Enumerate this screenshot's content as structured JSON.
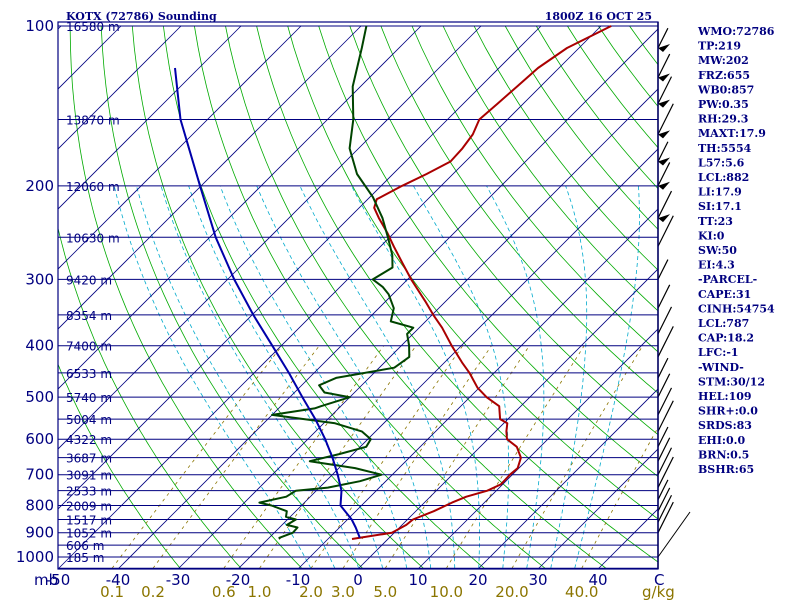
{
  "chart_data": {
    "type": "line",
    "title": "KOTX (72786) Sounding",
    "timestamp": "1800Z 16 OCT 25",
    "pressure_axis": {
      "unit_label": "mb",
      "ticks": [
        100,
        200,
        300,
        400,
        500,
        600,
        700,
        800,
        900,
        1000
      ],
      "range": [
        100,
        1050
      ],
      "scale": "log"
    },
    "temperature_axis": {
      "unit_label": "C",
      "ticks": [
        -50,
        -40,
        -30,
        -20,
        -10,
        0,
        10,
        20,
        30,
        40
      ],
      "range": [
        -50,
        50
      ],
      "skew": "45deg"
    },
    "mixing_ratio_axis": {
      "unit_label": "g/kg",
      "ticks": [
        "0.1",
        "0.2",
        "0.6",
        "1.0",
        "2.0",
        "3.0",
        "5.0",
        "10.0",
        "20.0",
        "40.0"
      ]
    },
    "height_labels": [
      {
        "p": 100,
        "text": "16580 m"
      },
      {
        "p": 150,
        "text": "13870 m"
      },
      {
        "p": 200,
        "text": "12060 m"
      },
      {
        "p": 250,
        "text": "10630 m"
      },
      {
        "p": 300,
        "text": "9420 m"
      },
      {
        "p": 350,
        "text": "8354 m"
      },
      {
        "p": 400,
        "text": "7400 m"
      },
      {
        "p": 450,
        "text": "6533 m"
      },
      {
        "p": 500,
        "text": "5740 m"
      },
      {
        "p": 550,
        "text": "5004 m"
      },
      {
        "p": 600,
        "text": "4322 m"
      },
      {
        "p": 650,
        "text": "3687 m"
      },
      {
        "p": 700,
        "text": "3091 m"
      },
      {
        "p": 750,
        "text": "2533 m"
      },
      {
        "p": 800,
        "text": "2009 m"
      },
      {
        "p": 850,
        "text": "1517 m"
      },
      {
        "p": 900,
        "text": "1052 m"
      },
      {
        "p": 950,
        "text": "606 m"
      },
      {
        "p": 1000,
        "text": "185 m"
      }
    ],
    "series": [
      {
        "name": "Temperature",
        "color": "#aa0000",
        "points": [
          [
            925,
            -6.0
          ],
          [
            920,
            -4.9
          ],
          [
            900,
            -0.4
          ],
          [
            870,
            0.7
          ],
          [
            850,
            0.9
          ],
          [
            820,
            3.0
          ],
          [
            790,
            4.6
          ],
          [
            770,
            6.0
          ],
          [
            750,
            8.5
          ],
          [
            730,
            9.7
          ],
          [
            700,
            9.6
          ],
          [
            680,
            9.8
          ],
          [
            650,
            8.6
          ],
          [
            620,
            6.1
          ],
          [
            600,
            3.2
          ],
          [
            580,
            1.8
          ],
          [
            560,
            0.6
          ],
          [
            550,
            -1.3
          ],
          [
            520,
            -3.6
          ],
          [
            500,
            -7.2
          ],
          [
            480,
            -10.3
          ],
          [
            450,
            -14.1
          ],
          [
            430,
            -17.1
          ],
          [
            400,
            -21.6
          ],
          [
            370,
            -26.2
          ],
          [
            350,
            -29.8
          ],
          [
            330,
            -33.4
          ],
          [
            300,
            -39.4
          ],
          [
            280,
            -43.5
          ],
          [
            260,
            -47.8
          ],
          [
            245,
            -51.2
          ],
          [
            230,
            -55.0
          ],
          [
            220,
            -57.5
          ],
          [
            212,
            -58.5
          ],
          [
            200,
            -56.5
          ],
          [
            190,
            -54.4
          ],
          [
            180,
            -52.5
          ],
          [
            170,
            -52.7
          ],
          [
            160,
            -53.3
          ],
          [
            150,
            -54.7
          ],
          [
            140,
            -54.3
          ],
          [
            130,
            -53.9
          ],
          [
            120,
            -53.5
          ],
          [
            110,
            -52.0
          ],
          [
            100,
            -48.3
          ]
        ]
      },
      {
        "name": "Dewpoint",
        "color": "#004400",
        "points": [
          [
            925,
            -18.0
          ],
          [
            920,
            -18.3
          ],
          [
            900,
            -16.9
          ],
          [
            880,
            -17.0
          ],
          [
            870,
            -19.2
          ],
          [
            850,
            -18.6
          ],
          [
            840,
            -20.7
          ],
          [
            820,
            -21.5
          ],
          [
            800,
            -25.0
          ],
          [
            790,
            -27.5
          ],
          [
            770,
            -24.0
          ],
          [
            750,
            -23.4
          ],
          [
            740,
            -18.6
          ],
          [
            720,
            -14.3
          ],
          [
            700,
            -11.8
          ],
          [
            680,
            -17.3
          ],
          [
            660,
            -26.0
          ],
          [
            640,
            -22.3
          ],
          [
            620,
            -19.0
          ],
          [
            600,
            -19.5
          ],
          [
            580,
            -22.3
          ],
          [
            560,
            -28.1
          ],
          [
            540,
            -40.0
          ],
          [
            525,
            -34.0
          ],
          [
            520,
            -33.3
          ],
          [
            500,
            -30.0
          ],
          [
            490,
            -35.0
          ],
          [
            475,
            -37.1
          ],
          [
            460,
            -35.5
          ],
          [
            440,
            -27.5
          ],
          [
            420,
            -26.8
          ],
          [
            400,
            -28.7
          ],
          [
            380,
            -31.0
          ],
          [
            370,
            -31.0
          ],
          [
            360,
            -35.8
          ],
          [
            340,
            -37.5
          ],
          [
            320,
            -40.7
          ],
          [
            310,
            -42.9
          ],
          [
            300,
            -45.8
          ],
          [
            285,
            -44.5
          ],
          [
            270,
            -46.6
          ],
          [
            250,
            -50.3
          ],
          [
            230,
            -54.4
          ],
          [
            210,
            -59.5
          ],
          [
            190,
            -66.0
          ],
          [
            170,
            -71.5
          ],
          [
            150,
            -75.7
          ],
          [
            130,
            -81.3
          ],
          [
            110,
            -86.2
          ],
          [
            100,
            -89.1
          ]
        ]
      },
      {
        "name": "Parcel",
        "color": "#0000aa",
        "points": [
          [
            920,
            -4.9
          ],
          [
            880,
            -7.3
          ],
          [
            850,
            -9.3
          ],
          [
            800,
            -13.5
          ],
          [
            750,
            -15.8
          ],
          [
            700,
            -19.1
          ],
          [
            650,
            -22.8
          ],
          [
            600,
            -27.1
          ],
          [
            550,
            -32.1
          ],
          [
            500,
            -37.9
          ],
          [
            450,
            -44.2
          ],
          [
            400,
            -51.5
          ],
          [
            350,
            -59.8
          ],
          [
            300,
            -68.9
          ],
          [
            250,
            -79.0
          ],
          [
            200,
            -90.2
          ],
          [
            150,
            -104.5
          ],
          [
            120,
            -114.0
          ]
        ]
      }
    ],
    "indices": [
      "WMO:72786",
      "TP:219",
      "MW:202",
      "FRZ:655",
      "WB0:857",
      "PW:0.35",
      "RH:29.3",
      "MAXT:17.9",
      "TH:5554",
      "L57:5.6",
      "LCL:882",
      "LI:17.9",
      "SI:17.1",
      "TT:23",
      "KI:0",
      "SW:50",
      "EI:4.3",
      "-PARCEL-",
      "CAPE:31",
      "CINH:54754",
      "LCL:787",
      "CAP:18.2",
      "LFC:-1",
      "-WIND-",
      "STM:30/12",
      "HEL:109",
      "SHR+:0.0",
      "SRDS:83",
      "EHI:0.0",
      "BRN:0.5",
      "BSHR:65"
    ],
    "colors": {
      "frame": "#000080",
      "isotherm": "#000080",
      "dry_adiabat": "#00aa00",
      "moist_adiabat": "#00aacc",
      "mixing_ratio": "#8B7500",
      "wind_barb": "#000000"
    }
  }
}
